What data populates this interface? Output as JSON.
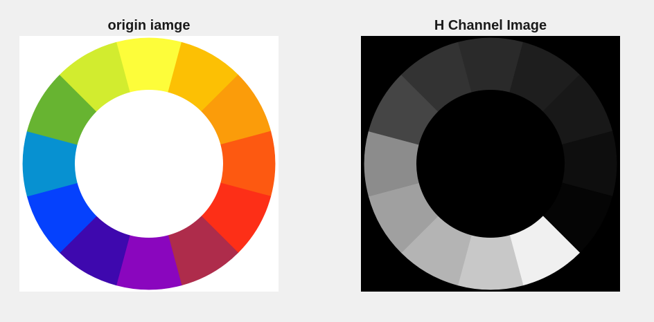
{
  "figure": {
    "background": "#f0f0f0",
    "panels": [
      {
        "title": "origin iamge",
        "background": "#ffffff",
        "hole_color": "#ffffff",
        "segment_colors": [
          "#fdfd3a",
          "#fcc004",
          "#fb9c0a",
          "#fd5911",
          "#fd2f17",
          "#ae2c4b",
          "#8a06be",
          "#3e08ae",
          "#0541fd",
          "#0791d1",
          "#67b431",
          "#d2ec2f"
        ]
      },
      {
        "title": "H Channel Image",
        "background": "#000000",
        "hole_color": "#000000",
        "segment_colors": [
          "#2a2a2a",
          "#1e1e1e",
          "#181818",
          "#0e0e0e",
          "#050505",
          "#f0f0f0",
          "#c8c8c8",
          "#b4b4b4",
          "#a0a0a0",
          "#8c8c8c",
          "#454545",
          "#333333"
        ]
      }
    ]
  }
}
